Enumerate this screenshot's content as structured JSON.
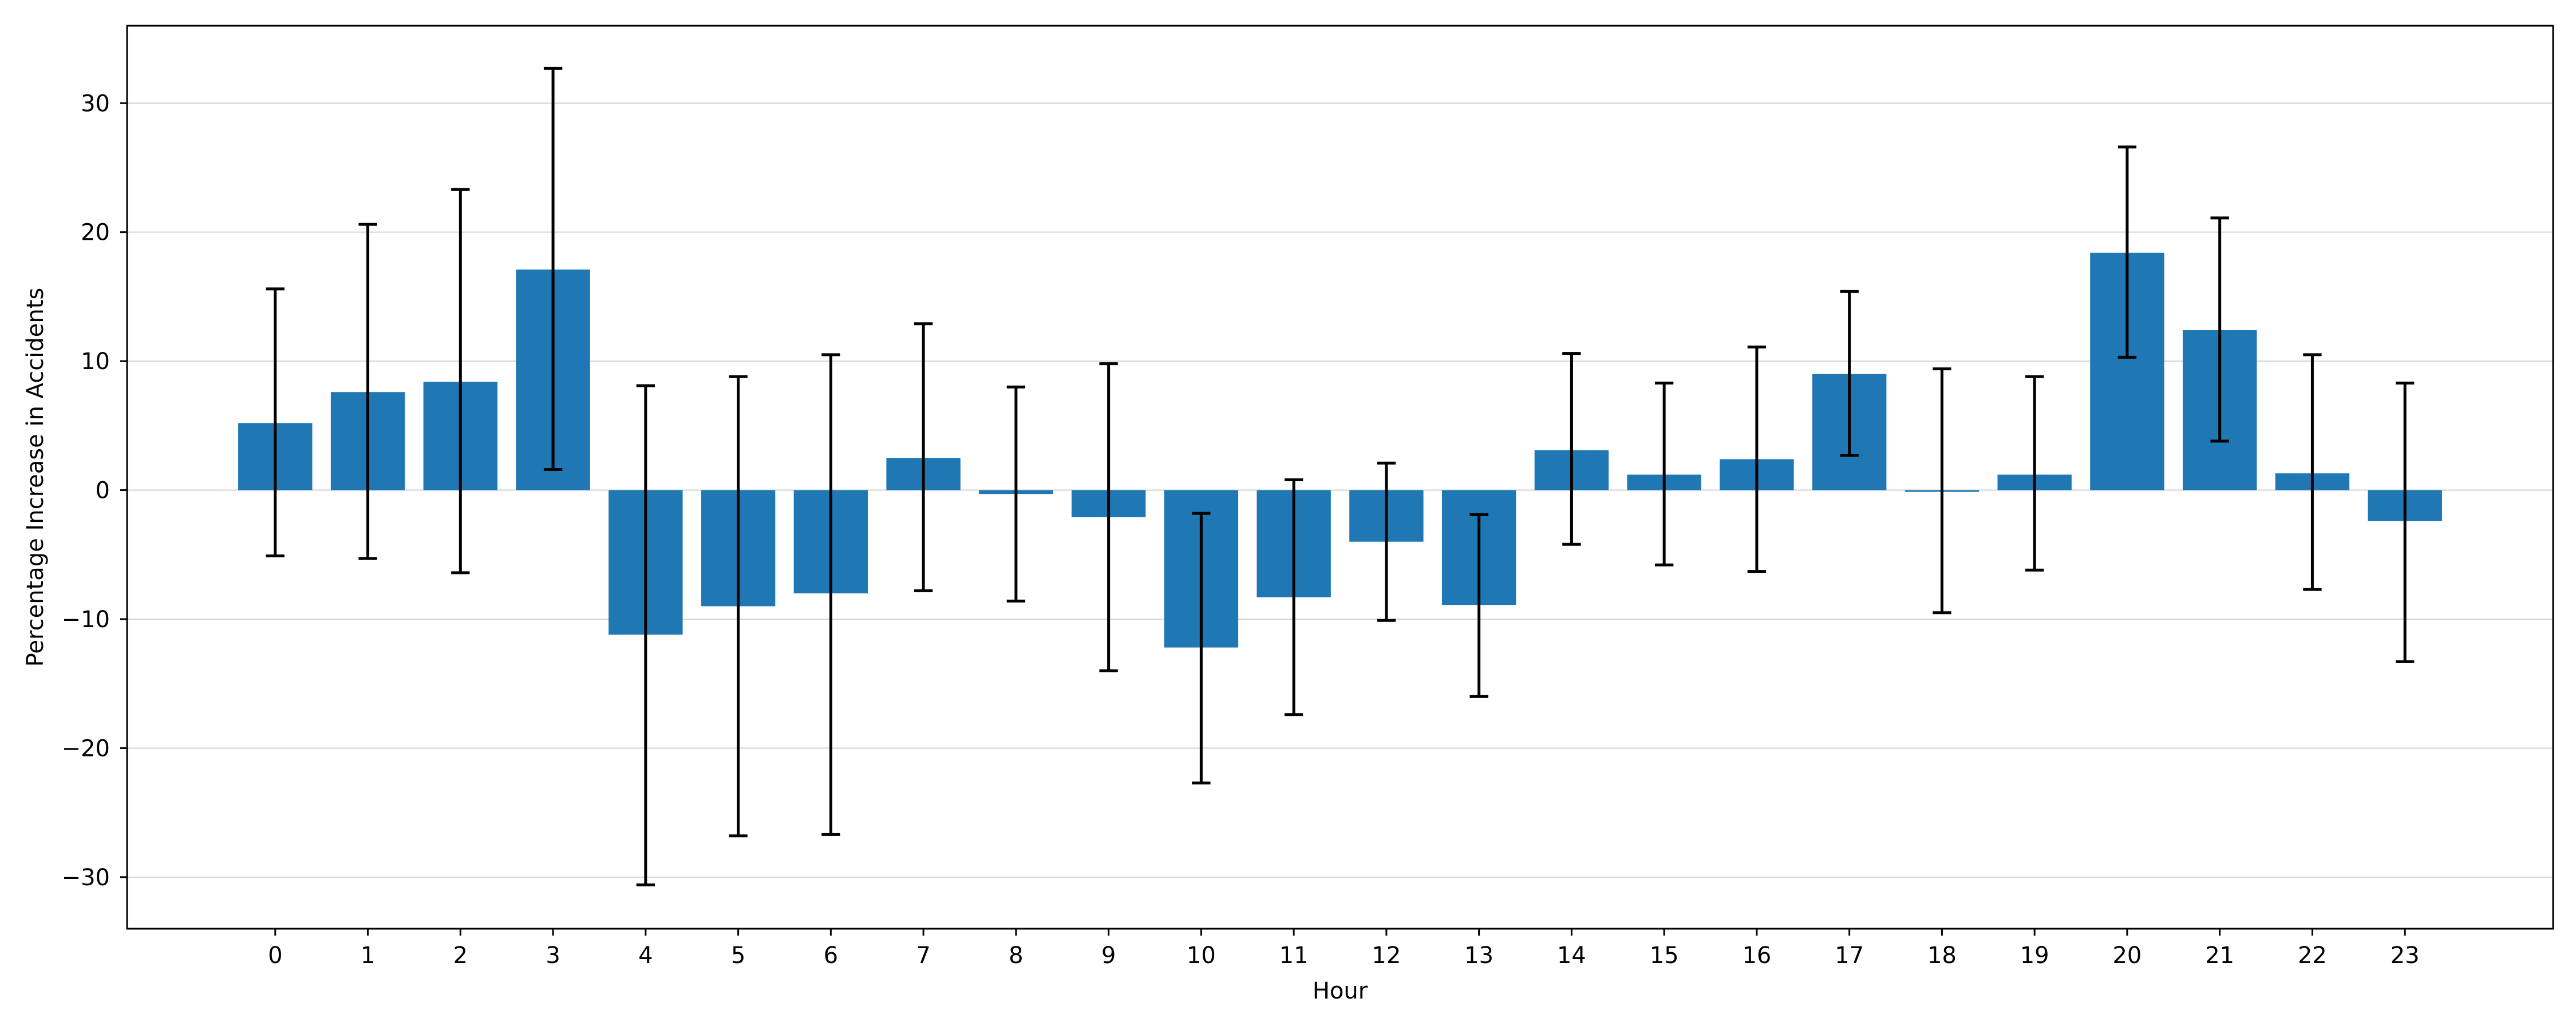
{
  "chart_data": {
    "type": "bar",
    "title": "",
    "xlabel": "Hour",
    "ylabel": "Percentage Increase in Accidents",
    "ylim": [
      -34,
      36
    ],
    "yticks": [
      -30,
      -20,
      -10,
      0,
      10,
      20,
      30
    ],
    "grid": "horizontal",
    "categories": [
      "0",
      "1",
      "2",
      "3",
      "4",
      "5",
      "6",
      "7",
      "8",
      "9",
      "10",
      "11",
      "12",
      "13",
      "14",
      "15",
      "16",
      "17",
      "18",
      "19",
      "20",
      "21",
      "22",
      "23"
    ],
    "values": [
      5.2,
      7.6,
      8.4,
      17.1,
      -11.2,
      -9.0,
      -8.0,
      2.5,
      -0.3,
      -2.1,
      -12.2,
      -8.3,
      -4.0,
      -8.9,
      3.1,
      1.2,
      2.4,
      9.0,
      -0.1,
      1.2,
      18.4,
      12.4,
      1.3,
      -2.4
    ],
    "error_low": [
      -5.1,
      -5.3,
      -6.4,
      1.6,
      -30.6,
      -26.8,
      -26.7,
      -7.8,
      -8.6,
      -14.0,
      -22.7,
      -17.4,
      -10.1,
      -16.0,
      -4.2,
      -5.8,
      -6.3,
      2.7,
      -9.5,
      -6.2,
      10.3,
      3.8,
      -7.7,
      -13.3
    ],
    "error_high": [
      15.6,
      20.6,
      23.3,
      32.7,
      8.1,
      8.8,
      10.5,
      12.9,
      8.0,
      9.8,
      -1.8,
      0.8,
      2.1,
      -1.9,
      10.6,
      8.3,
      11.1,
      15.4,
      9.4,
      8.8,
      26.6,
      21.1,
      10.5,
      8.3
    ],
    "bar_color": "#1f77b4",
    "error_color": "#000000",
    "grid_color": "#d3d3d3"
  }
}
